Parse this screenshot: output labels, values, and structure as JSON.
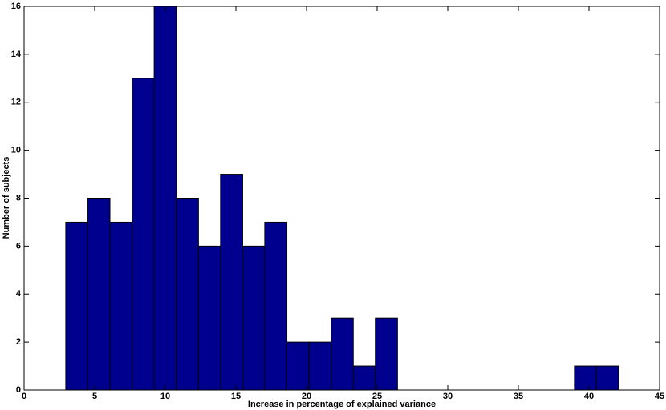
{
  "chart_data": {
    "type": "histogram",
    "x_label": "Increase in percentage of explained variance",
    "y_label": "Number of subjects",
    "bins": [
      2.95,
      4.52,
      6.08,
      7.65,
      9.21,
      10.78,
      12.35,
      13.91,
      15.48,
      17.04,
      18.61,
      20.18,
      21.74,
      23.31,
      24.87,
      26.44,
      28.01,
      29.57,
      31.14,
      32.7,
      34.27,
      35.84,
      37.4,
      38.97,
      40.53,
      42.1
    ],
    "values": [
      7,
      8,
      7,
      13,
      16,
      8,
      6,
      9,
      6,
      7,
      2,
      2,
      3,
      1,
      3,
      0,
      0,
      0,
      0,
      0,
      0,
      0,
      0,
      1,
      1
    ],
    "color": "#00008f",
    "xlim": [
      0,
      45
    ],
    "xticks": [
      0,
      5,
      10,
      15,
      20,
      25,
      30,
      35,
      40,
      45
    ],
    "ylim": [
      0,
      16
    ],
    "yticks": [
      0,
      2,
      4,
      6,
      8,
      10,
      12,
      14,
      16
    ]
  }
}
